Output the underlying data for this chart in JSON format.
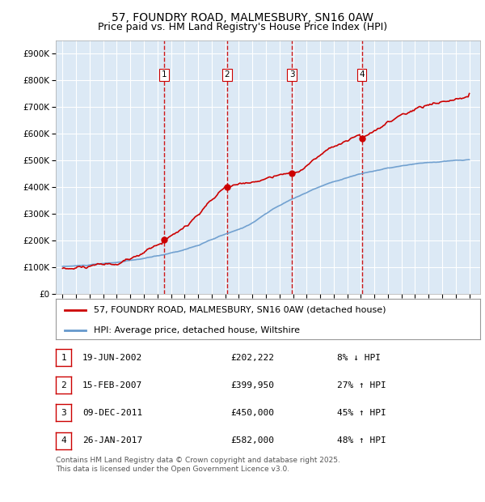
{
  "title": "57, FOUNDRY ROAD, MALMESBURY, SN16 0AW",
  "subtitle": "Price paid vs. HM Land Registry's House Price Index (HPI)",
  "legend_label_red": "57, FOUNDRY ROAD, MALMESBURY, SN16 0AW (detached house)",
  "legend_label_blue": "HPI: Average price, detached house, Wiltshire",
  "footer": "Contains HM Land Registry data © Crown copyright and database right 2025.\nThis data is licensed under the Open Government Licence v3.0.",
  "transactions": [
    {
      "num": 1,
      "date": "19-JUN-2002",
      "price": 202222,
      "pct": "8%",
      "dir": "↓"
    },
    {
      "num": 2,
      "date": "15-FEB-2007",
      "price": 399950,
      "pct": "27%",
      "dir": "↑"
    },
    {
      "num": 3,
      "date": "09-DEC-2011",
      "price": 450000,
      "pct": "45%",
      "dir": "↑"
    },
    {
      "num": 4,
      "date": "26-JAN-2017",
      "price": 582000,
      "pct": "48%",
      "dir": "↑"
    }
  ],
  "transaction_dates_decimal": [
    2002.47,
    2007.12,
    2011.92,
    2017.07
  ],
  "sale_prices": [
    202222,
    399950,
    450000,
    582000
  ],
  "ylim": [
    0,
    950000
  ],
  "yticks": [
    0,
    100000,
    200000,
    300000,
    400000,
    500000,
    600000,
    700000,
    800000,
    900000
  ],
  "xlim_start": 1994.5,
  "xlim_end": 2025.8,
  "background_color": "#ffffff",
  "plot_bg_color": "#dce9f5",
  "grid_color": "#ffffff",
  "red_color": "#cc0000",
  "blue_color": "#6699cc",
  "vline_color": "#cc0000",
  "marker_color": "#cc0000",
  "title_fontsize": 10,
  "subtitle_fontsize": 9,
  "tick_fontsize": 7.5,
  "legend_fontsize": 8,
  "table_fontsize": 8,
  "footer_fontsize": 6.5
}
